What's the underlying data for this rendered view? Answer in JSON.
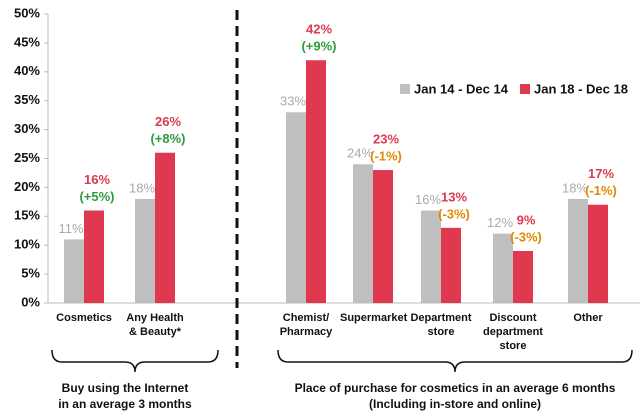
{
  "chart_data": {
    "type": "bar",
    "categories": [
      "Cosmetics",
      "Any Health & Beauty*",
      "Chemist/ Pharmacy",
      "Supermarket",
      "Department store",
      "Discount department store",
      "Other"
    ],
    "series": [
      {
        "name": "Jan 14 - Dec 14",
        "color": "#bfbfbf",
        "values": [
          11,
          18,
          33,
          24,
          16,
          12,
          18
        ],
        "value_labels": [
          "11%",
          "18%",
          "33%",
          "24%",
          "16%",
          "12%",
          "18%"
        ]
      },
      {
        "name": "Jan 18 - Dec 18",
        "color": "#e0394f",
        "values": [
          16,
          26,
          42,
          23,
          13,
          9,
          17
        ],
        "value_labels": [
          "16%",
          "26%",
          "42%",
          "23%",
          "13%",
          "9%",
          "17%"
        ]
      }
    ],
    "change_labels": [
      "(+5%)",
      "(+8%)",
      "(+9%)",
      "(-1%)",
      "(-3%)",
      "(-3%)",
      "(-1%)"
    ],
    "ylim": [
      0,
      50
    ],
    "yticks": [
      {
        "value": 0,
        "label": "0%"
      },
      {
        "value": 5,
        "label": "5%"
      },
      {
        "value": 10,
        "label": "10%"
      },
      {
        "value": 15,
        "label": "15%"
      },
      {
        "value": 20,
        "label": "20%"
      },
      {
        "value": 25,
        "label": "25%"
      },
      {
        "value": 30,
        "label": "30%"
      },
      {
        "value": 35,
        "label": "35%"
      },
      {
        "value": 40,
        "label": "40%"
      },
      {
        "value": 45,
        "label": "45%"
      },
      {
        "value": 50,
        "label": "50%"
      }
    ],
    "groups": [
      {
        "lines": [
          "Buy using the Internet",
          "in an average 3 months"
        ]
      },
      {
        "lines": [
          "Place of purchase for cosmetics in an average 6 months",
          "(Including in-store and online)"
        ]
      }
    ]
  }
}
